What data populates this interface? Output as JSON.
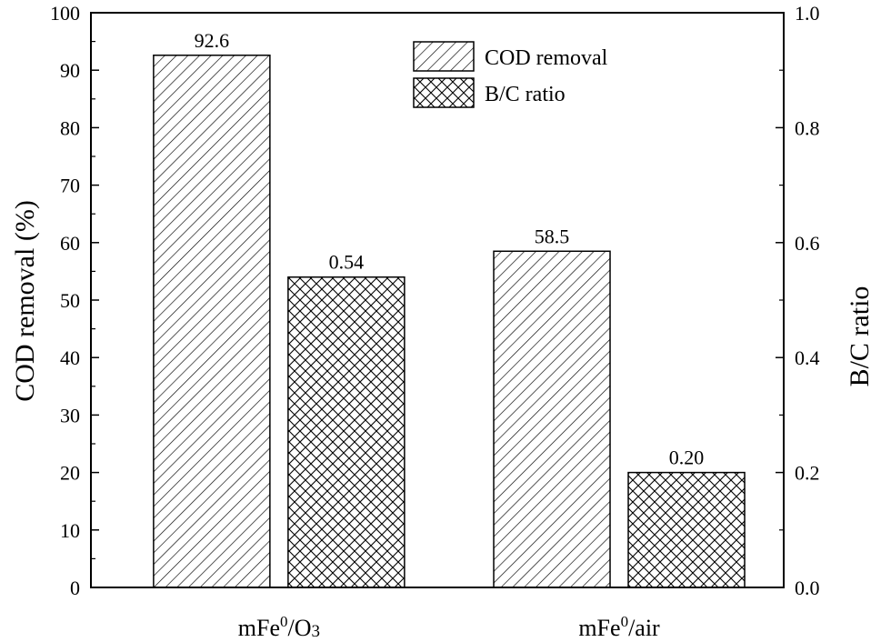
{
  "chart_data": {
    "type": "bar",
    "categories": [
      "mFe⁰/O₃",
      "mFe⁰/air"
    ],
    "category_labels": [
      {
        "base": "mFe",
        "sup": "0",
        "tail": "/O",
        "sub": "3"
      },
      {
        "base": "mFe",
        "sup": "0",
        "tail": "/air",
        "sub": ""
      }
    ],
    "series": [
      {
        "name": "COD removal",
        "axis": "left",
        "values": [
          92.6,
          58.5
        ],
        "labels": [
          "92.6",
          "58.5"
        ],
        "pattern": "diagonal-hatch"
      },
      {
        "name": "B/C ratio",
        "axis": "right",
        "values": [
          0.54,
          0.2
        ],
        "labels": [
          "0.54",
          "0.20"
        ],
        "pattern": "cross-hatch"
      }
    ],
    "y_left": {
      "label": "COD removal (%)",
      "lim": [
        0,
        100
      ],
      "ticks": [
        "0",
        "10",
        "20",
        "30",
        "40",
        "50",
        "60",
        "70",
        "80",
        "90",
        "100"
      ]
    },
    "y_right": {
      "label": "B/C ratio",
      "lim": [
        0,
        1.0
      ],
      "ticks": [
        "0.0",
        "0.2",
        "0.4",
        "0.6",
        "0.8",
        "1.0"
      ]
    },
    "legend": {
      "position": "top-right",
      "entries": [
        "COD removal",
        "B/C ratio"
      ]
    },
    "grid": false,
    "colors": {
      "bar_fill": "#ffffff",
      "stroke": "#000000"
    }
  }
}
